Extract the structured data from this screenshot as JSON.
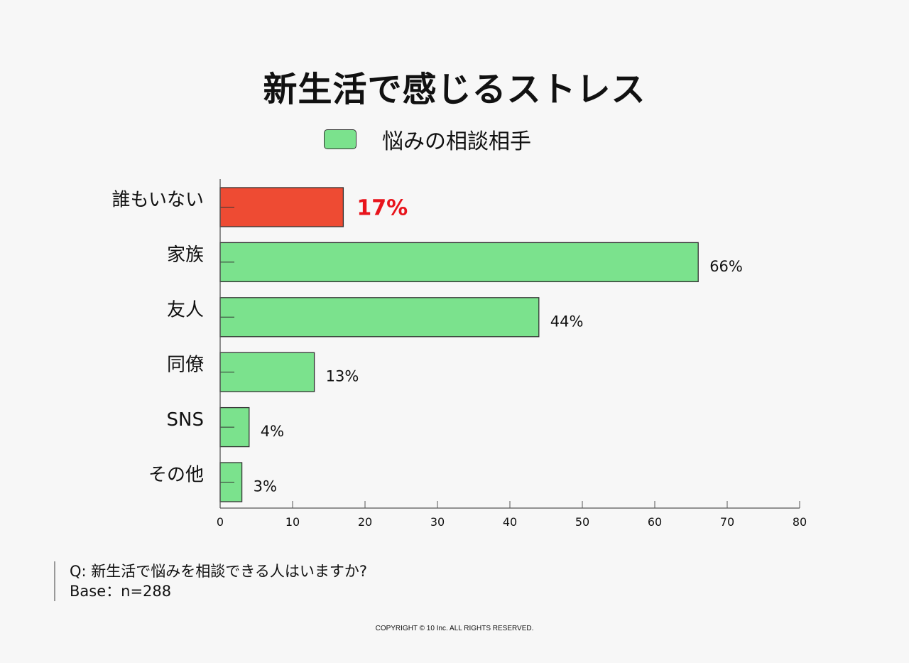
{
  "chart_data": {
    "type": "bar",
    "orientation": "horizontal",
    "title": "新生活で感じるストレス",
    "legend": [
      "悩みの相談相手"
    ],
    "categories": [
      "誰もいない",
      "家族",
      "友人",
      "同僚",
      "SNS",
      "その他"
    ],
    "values": [
      17,
      66,
      44,
      13,
      4,
      3
    ],
    "value_labels": [
      "17%",
      "66%",
      "44%",
      "13%",
      "4%",
      "3%"
    ],
    "highlight_index": 0,
    "xlim": [
      0,
      80
    ],
    "xticks": [
      0,
      10,
      20,
      30,
      40,
      50,
      60,
      70,
      80
    ],
    "colors": {
      "default": "#7be28d",
      "highlight": "#ee4b33",
      "highlight_text": "#e8141c"
    }
  },
  "note": {
    "question": "Q:  新生活で悩みを相談できる人はいますか?",
    "base": "Base：n=288"
  },
  "copyright": "COPYRIGHT © 10 Inc. ALL RIGHTS RESERVED."
}
